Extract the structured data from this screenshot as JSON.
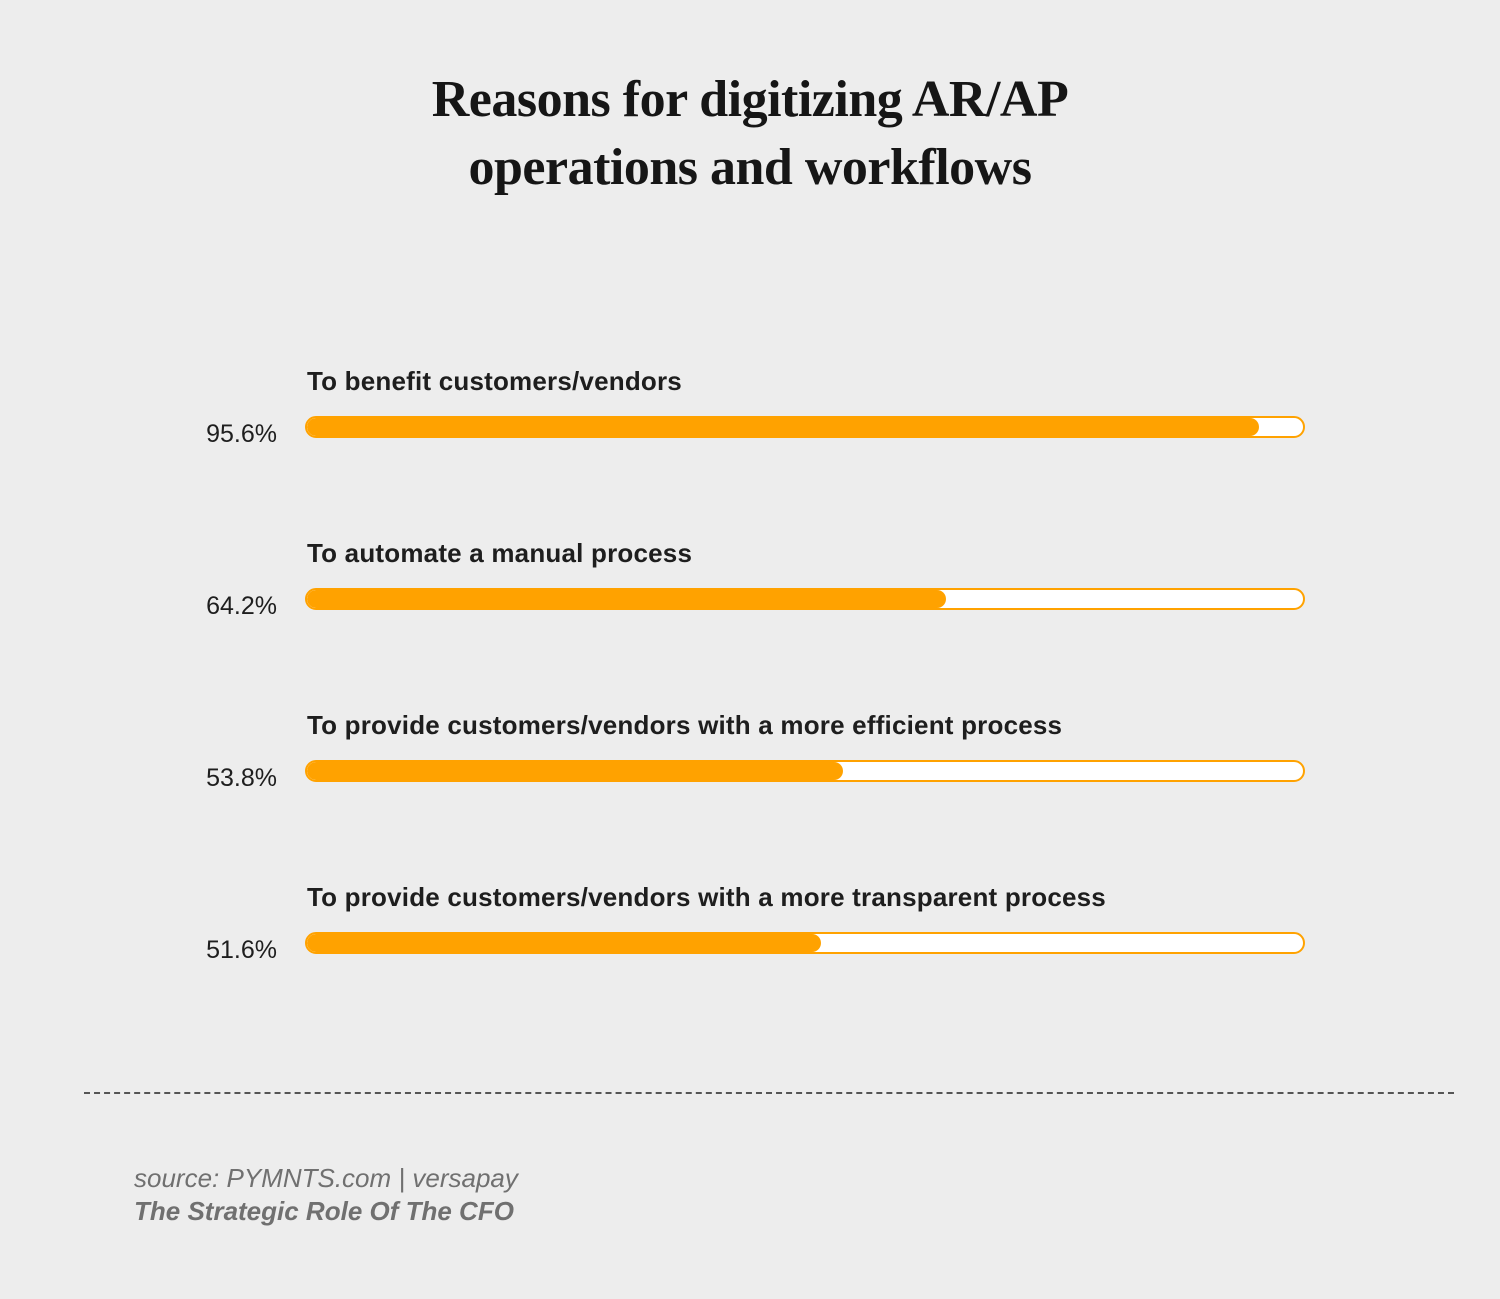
{
  "chart_data": {
    "type": "bar",
    "orientation": "horizontal",
    "title": "Reasons for digitizing AR/AP operations and workflows",
    "title_lines": [
      "Reasons for digitizing AR/AP",
      "operations and workflows"
    ],
    "categories": [
      "To benefit customers/vendors",
      "To automate a manual process",
      "To provide customers/vendors with a more efficient process",
      "To provide customers/vendors with a more transparent process"
    ],
    "values": [
      95.6,
      64.2,
      53.8,
      51.6
    ],
    "value_labels": [
      "95.6%",
      "64.2%",
      "53.8%",
      "51.6%"
    ],
    "unit": "%",
    "xlim": [
      0,
      100
    ],
    "grid": false,
    "legend": "none",
    "colors": {
      "bar_fill": "#ffa200",
      "track": "#ffffff",
      "background": "#ededed"
    }
  },
  "source": {
    "line1": "source:  PYMNTS.com | versapay",
    "line2": "The Strategic Role Of The CFO"
  }
}
